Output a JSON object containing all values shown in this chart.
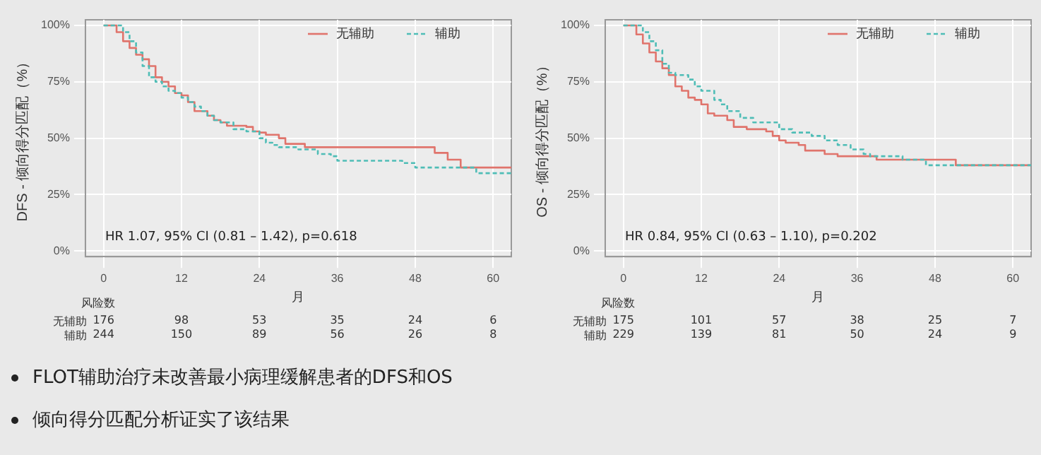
{
  "chart_data": [
    {
      "type": "step",
      "xlabel": "月",
      "ylabel": "DFS - 倾向得分匹配（%）",
      "xlim": [
        -2.8,
        62.8
      ],
      "ylim": [
        -2.5,
        102.5
      ],
      "xticks": [
        0,
        12,
        24,
        36,
        48,
        60
      ],
      "yticks": [
        {
          "value": 0,
          "label": "0%"
        },
        {
          "value": 25,
          "label": "25%"
        },
        {
          "value": 50,
          "label": "50%"
        },
        {
          "value": 75,
          "label": "75%"
        },
        {
          "value": 100,
          "label": "100%"
        }
      ],
      "grid": true,
      "legend": "top right",
      "marker": "none",
      "series": [
        {
          "name": "无辅助",
          "color": "#e0746c",
          "line_style": "solid",
          "x": [
            0,
            1,
            2,
            3,
            4,
            5,
            6,
            7,
            8,
            9,
            10,
            11,
            12,
            13,
            14,
            16,
            17,
            18,
            19,
            22,
            23,
            24,
            25,
            27,
            28,
            31,
            51,
            53,
            55,
            62.8
          ],
          "values": [
            100,
            100,
            97,
            93,
            90,
            87,
            85,
            82,
            77,
            75,
            73,
            70,
            69,
            66,
            62,
            60,
            58,
            57,
            55.5,
            55,
            53,
            52.5,
            51.5,
            50,
            47.5,
            46,
            43.5,
            40.5,
            37,
            37
          ]
        },
        {
          "name": "辅助",
          "color": "#4fbdb6",
          "line_style": "dotted",
          "x": [
            0,
            2,
            3,
            4,
            5,
            6,
            7,
            8,
            9,
            10,
            11,
            12,
            13,
            14,
            15,
            16,
            17,
            18,
            20,
            22,
            24,
            25,
            26,
            27,
            30,
            33,
            35,
            36,
            46,
            48,
            57.4,
            62.8
          ],
          "values": [
            100,
            100,
            97,
            93,
            88,
            82,
            77,
            75,
            73,
            71,
            70,
            68,
            66,
            64,
            62,
            60,
            58,
            57,
            54,
            53,
            50,
            48,
            47,
            46,
            45,
            43,
            42,
            40,
            39,
            37,
            34.5,
            34.5
          ]
        }
      ],
      "annotations": [
        "HR 1.07, 95% CI (0.81 – 1.42), p=0.618",
        "风险数",
        "无辅助",
        "176",
        "98",
        "53",
        "35",
        "24",
        "6",
        "辅助",
        "244",
        "150",
        "89",
        "56",
        "26",
        "8"
      ]
    },
    {
      "type": "step",
      "xlabel": "月",
      "ylabel": "OS - 倾向得分匹配（%）",
      "xlim": [
        -2.8,
        62.8
      ],
      "ylim": [
        -2.5,
        102.5
      ],
      "xticks": [
        0,
        12,
        24,
        36,
        48,
        60
      ],
      "yticks": [
        {
          "value": 0,
          "label": "0%"
        },
        {
          "value": 25,
          "label": "25%"
        },
        {
          "value": 50,
          "label": "50%"
        },
        {
          "value": 75,
          "label": "75%"
        },
        {
          "value": 100,
          "label": "100%"
        }
      ],
      "grid": true,
      "legend": "top right",
      "marker": "none",
      "series": [
        {
          "name": "无辅助",
          "color": "#e0746c",
          "line_style": "solid",
          "x": [
            0,
            1,
            2,
            3,
            4,
            5,
            6,
            7,
            8,
            9,
            10,
            11,
            12,
            13,
            14,
            16,
            17,
            19,
            22,
            23,
            24,
            25,
            27,
            28,
            31,
            33,
            39,
            51.2,
            62.8
          ],
          "values": [
            100,
            100,
            96,
            92,
            88,
            84,
            81,
            78,
            73,
            71,
            68,
            67,
            65,
            61,
            60,
            58,
            55,
            54,
            53,
            51,
            49,
            48,
            47,
            44.5,
            43,
            42,
            40.5,
            38,
            38
          ]
        },
        {
          "name": "辅助",
          "color": "#4fbdb6",
          "line_style": "dotted",
          "x": [
            0,
            2,
            3,
            4,
            5,
            6,
            7,
            8,
            10,
            11,
            12,
            14,
            15,
            16,
            18,
            20,
            22,
            24,
            26,
            29,
            31,
            33,
            35,
            37,
            38,
            43,
            46.6,
            62.8
          ],
          "values": [
            100,
            100,
            97,
            93,
            89,
            83,
            79,
            78,
            76,
            73,
            71,
            67,
            65,
            62,
            59,
            57,
            57,
            54,
            52.5,
            51,
            49,
            47,
            45,
            43,
            42,
            40.5,
            38,
            38
          ]
        }
      ],
      "annotations": [
        "HR 0.84, 95% CI (0.63 – 1.10), p=0.202",
        "风险数",
        "无辅助",
        "175",
        "101",
        "57",
        "38",
        "25",
        "7",
        "辅助",
        "229",
        "139",
        "81",
        "50",
        "24",
        "9"
      ]
    },
    {
      "type": "other",
      "annotations": [
        "FLOT辅助治疗未改善最小病理缓解患者的DFS和OS",
        "倾向得分匹配分析证实了该结果"
      ]
    }
  ]
}
